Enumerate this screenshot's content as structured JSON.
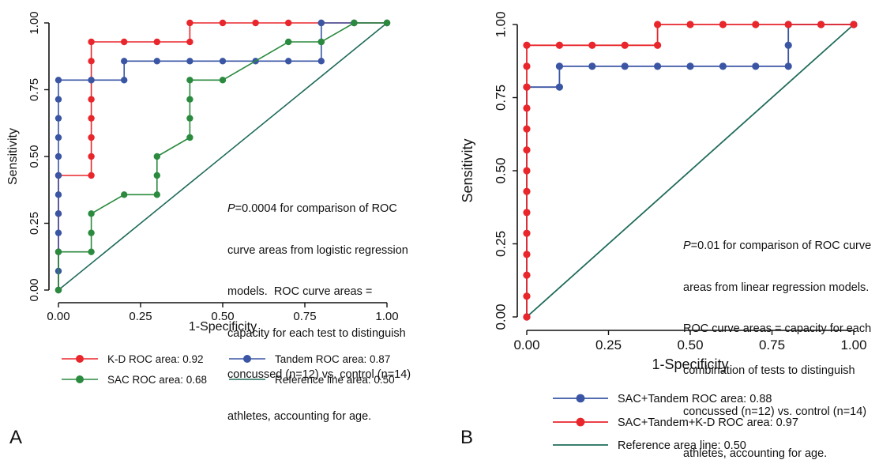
{
  "chart_data": [
    {
      "type": "line",
      "panel_label": "A",
      "xlabel": "1-Specificity",
      "ylabel": "Sensitivity",
      "xlim": [
        0,
        1
      ],
      "ylim": [
        0,
        1
      ],
      "x_ticks": [
        "0.00",
        "0.25",
        "0.50",
        "0.75",
        "1.00"
      ],
      "y_ticks": [
        "0.00",
        "0.25",
        "0.50",
        "0.75",
        "1.00"
      ],
      "grid": false,
      "legend_placement": "bottom",
      "annotation": {
        "p_symbol": "P",
        "lines": [
          "=0.0004 for comparison of ROC",
          "curve areas from logistic regression",
          "models.  ROC curve areas =",
          "capacity for each test to distinguish",
          "concussed (n=12) vs. control (n=14)",
          "athletes, accounting for age."
        ]
      },
      "series": [
        {
          "name": "K-D ROC area: 0.92",
          "color": "#e8262b",
          "markers": true,
          "points": [
            [
              0,
              0
            ],
            [
              0,
              0.143
            ],
            [
              0,
              0.286
            ],
            [
              0,
              0.429
            ],
            [
              0.1,
              0.429
            ],
            [
              0.1,
              0.5
            ],
            [
              0.1,
              0.571
            ],
            [
              0.1,
              0.643
            ],
            [
              0.1,
              0.714
            ],
            [
              0.1,
              0.786
            ],
            [
              0.1,
              0.857
            ],
            [
              0.1,
              0.929
            ],
            [
              0.2,
              0.929
            ],
            [
              0.3,
              0.929
            ],
            [
              0.4,
              0.929
            ],
            [
              0.4,
              1
            ],
            [
              0.5,
              1
            ],
            [
              0.6,
              1
            ],
            [
              0.7,
              1
            ],
            [
              0.8,
              1
            ],
            [
              0.9,
              1
            ],
            [
              1,
              1
            ]
          ]
        },
        {
          "name": "Tandem ROC area: 0.87",
          "color": "#3a55a4",
          "markers": true,
          "points": [
            [
              0,
              0
            ],
            [
              0,
              0.071
            ],
            [
              0,
              0.143
            ],
            [
              0,
              0.214
            ],
            [
              0,
              0.286
            ],
            [
              0,
              0.357
            ],
            [
              0,
              0.429
            ],
            [
              0,
              0.5
            ],
            [
              0,
              0.571
            ],
            [
              0,
              0.643
            ],
            [
              0,
              0.714
            ],
            [
              0,
              0.786
            ],
            [
              0.1,
              0.786
            ],
            [
              0.2,
              0.786
            ],
            [
              0.2,
              0.857
            ],
            [
              0.3,
              0.857
            ],
            [
              0.4,
              0.857
            ],
            [
              0.5,
              0.857
            ],
            [
              0.6,
              0.857
            ],
            [
              0.7,
              0.857
            ],
            [
              0.8,
              0.857
            ],
            [
              0.8,
              0.929
            ],
            [
              0.8,
              1
            ],
            [
              0.9,
              1
            ],
            [
              1,
              1
            ]
          ]
        },
        {
          "name": "SAC ROC area: 0.68",
          "color": "#2a8a3e",
          "markers": true,
          "points": [
            [
              0,
              0
            ],
            [
              0,
              0.143
            ],
            [
              0.1,
              0.143
            ],
            [
              0.1,
              0.214
            ],
            [
              0.1,
              0.286
            ],
            [
              0.2,
              0.357
            ],
            [
              0.3,
              0.357
            ],
            [
              0.3,
              0.429
            ],
            [
              0.3,
              0.5
            ],
            [
              0.4,
              0.571
            ],
            [
              0.4,
              0.643
            ],
            [
              0.4,
              0.714
            ],
            [
              0.4,
              0.786
            ],
            [
              0.5,
              0.786
            ],
            [
              0.7,
              0.929
            ],
            [
              0.8,
              0.929
            ],
            [
              0.9,
              1
            ],
            [
              1,
              1
            ]
          ]
        },
        {
          "name": "Reference line area: 0.50",
          "color": "#1f6b5a",
          "markers": false,
          "points": [
            [
              0,
              0
            ],
            [
              1,
              1
            ]
          ]
        }
      ]
    },
    {
      "type": "line",
      "panel_label": "B",
      "xlabel": "1-Specificity",
      "ylabel": "Sensitivity",
      "xlim": [
        0,
        1
      ],
      "ylim": [
        0,
        1
      ],
      "x_ticks": [
        "0.00",
        "0.25",
        "0.50",
        "0.75",
        "1.00"
      ],
      "y_ticks": [
        "0.00",
        "0.25",
        "0.50",
        "0.75",
        "1.00"
      ],
      "grid": false,
      "legend_placement": "bottom",
      "annotation": {
        "p_symbol": "P",
        "lines": [
          "=0.01 for comparison of ROC curve",
          "areas from linear regression models.",
          "ROC curve areas = capacity for each",
          "combination of tests to distinguish",
          "concussed (n=12) vs. control (n=14)",
          "athletes, accounting for age."
        ]
      },
      "series": [
        {
          "name": "SAC+Tandem ROC area: 0.88",
          "color": "#3a55a4",
          "markers": true,
          "points": [
            [
              0,
              0
            ],
            [
              0,
              0.786
            ],
            [
              0.1,
              0.786
            ],
            [
              0.1,
              0.857
            ],
            [
              0.2,
              0.857
            ],
            [
              0.3,
              0.857
            ],
            [
              0.4,
              0.857
            ],
            [
              0.5,
              0.857
            ],
            [
              0.6,
              0.857
            ],
            [
              0.7,
              0.857
            ],
            [
              0.8,
              0.857
            ],
            [
              0.8,
              0.929
            ],
            [
              0.8,
              1
            ],
            [
              0.9,
              1
            ],
            [
              1,
              1
            ]
          ]
        },
        {
          "name": "SAC+Tandem+K-D ROC area: 0.97",
          "color": "#e8262b",
          "markers": true,
          "points": [
            [
              0,
              0
            ],
            [
              0,
              0.071
            ],
            [
              0,
              0.143
            ],
            [
              0,
              0.214
            ],
            [
              0,
              0.286
            ],
            [
              0,
              0.357
            ],
            [
              0,
              0.429
            ],
            [
              0,
              0.5
            ],
            [
              0,
              0.571
            ],
            [
              0,
              0.643
            ],
            [
              0,
              0.714
            ],
            [
              0,
              0.786
            ],
            [
              0,
              0.857
            ],
            [
              0,
              0.929
            ],
            [
              0.1,
              0.929
            ],
            [
              0.2,
              0.929
            ],
            [
              0.3,
              0.929
            ],
            [
              0.4,
              0.929
            ],
            [
              0.4,
              1
            ],
            [
              0.5,
              1
            ],
            [
              0.6,
              1
            ],
            [
              0.7,
              1
            ],
            [
              0.8,
              1
            ],
            [
              0.9,
              1
            ],
            [
              1,
              1
            ]
          ]
        },
        {
          "name": "Reference area line:  0.50",
          "color": "#1f6b5a",
          "markers": false,
          "points": [
            [
              0,
              0
            ],
            [
              1,
              1
            ]
          ]
        }
      ]
    }
  ]
}
